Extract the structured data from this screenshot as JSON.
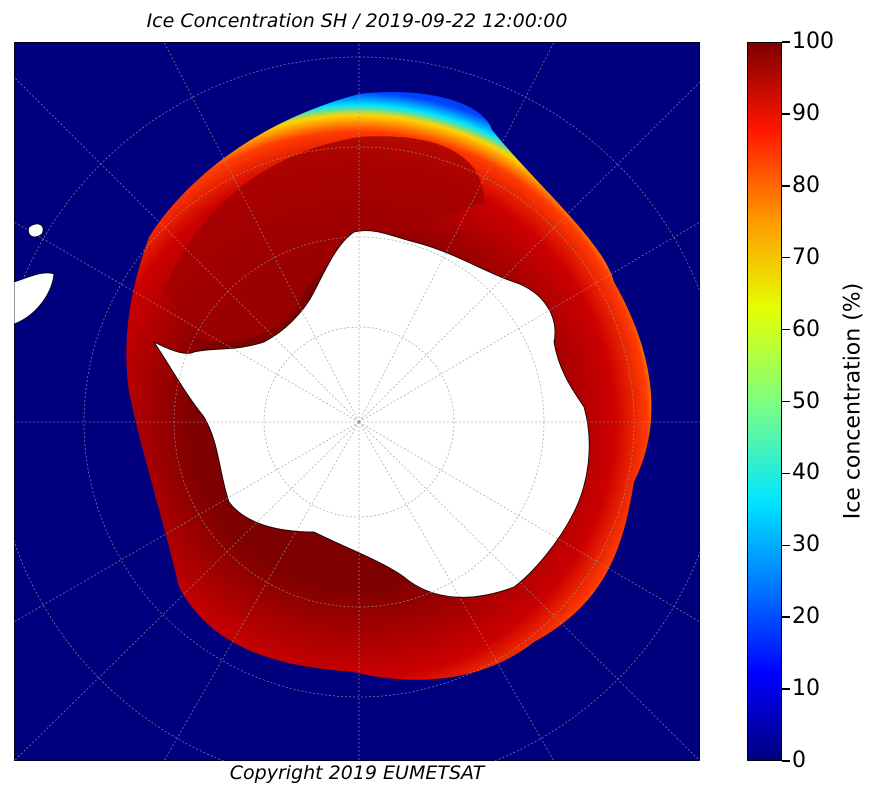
{
  "title": "Ice Concentration SH / 2019-09-22 12:00:00",
  "copyright": "Copyright 2019 EUMETSAT",
  "colorbar": {
    "label": "Ice concentration (%)",
    "ticks": [
      "100",
      "90",
      "80",
      "70",
      "60",
      "50",
      "40",
      "30",
      "20",
      "10",
      "0"
    ],
    "range": [
      0,
      100
    ],
    "colormap": "jet"
  },
  "colors": {
    "ocean": "#00007f",
    "ice_high": "#7f0000",
    "ice_mid": "#ff1500",
    "ice_edge": "#00e5ff",
    "land": "#ffffff"
  }
}
